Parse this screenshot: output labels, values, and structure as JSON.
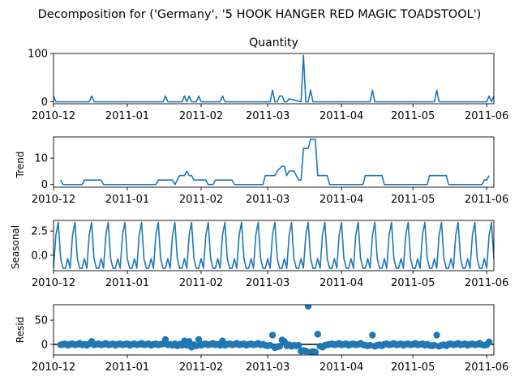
{
  "figure": {
    "title": "Decomposition for ('Germany', '5 HOOK HANGER RED MAGIC TOADSTOOL')"
  },
  "colors": {
    "line": "#1f77b4",
    "axis": "#000000"
  },
  "chart_data": [
    {
      "type": "line",
      "panel": "observed",
      "title": "Quantity",
      "ylabel": "",
      "ylim": [
        -4,
        100
      ],
      "yticks": [
        0,
        100
      ],
      "xlim": [
        "2010-12-01",
        "2011-06-04"
      ],
      "xticks": [
        "2010-12",
        "2011-01",
        "2011-02",
        "2011-03",
        "2011-04",
        "2011-05",
        "2011-06"
      ],
      "series": [
        {
          "x": [
            "2010-12-01",
            "2010-12-02",
            "2010-12-16",
            "2010-12-17",
            "2010-12-18",
            "2011-01-16",
            "2011-01-17",
            "2011-01-18",
            "2011-01-24",
            "2011-01-25",
            "2011-01-26",
            "2011-01-27",
            "2011-01-28",
            "2011-01-30",
            "2011-01-31",
            "2011-02-01",
            "2011-02-09",
            "2011-02-10",
            "2011-02-11",
            "2011-03-02",
            "2011-03-03",
            "2011-03-04",
            "2011-03-05",
            "2011-03-06",
            "2011-03-07",
            "2011-03-08",
            "2011-03-09",
            "2011-03-10",
            "2011-03-15",
            "2011-03-16",
            "2011-03-17",
            "2011-03-18",
            "2011-03-19",
            "2011-03-20",
            "2011-04-13",
            "2011-04-14",
            "2011-04-15",
            "2011-05-10",
            "2011-05-11",
            "2011-05-12",
            "2011-06-01",
            "2011-06-02",
            "2011-06-03",
            "2011-06-04"
          ],
          "y": [
            12,
            0,
            0,
            12,
            0,
            0,
            12,
            0,
            0,
            12,
            0,
            12,
            0,
            0,
            12,
            0,
            0,
            12,
            0,
            0,
            24,
            0,
            0,
            12,
            12,
            0,
            0,
            6,
            0,
            96,
            0,
            0,
            24,
            0,
            0,
            24,
            0,
            0,
            24,
            0,
            0,
            12,
            0,
            12
          ]
        }
      ]
    },
    {
      "type": "line",
      "panel": "trend",
      "title": "",
      "ylabel": "Trend",
      "ylim": [
        -1,
        18
      ],
      "yticks": [
        0,
        10
      ],
      "xlim": [
        "2010-12-01",
        "2011-06-04"
      ],
      "xticks": [
        "2010-12",
        "2011-01",
        "2011-02",
        "2011-03",
        "2011-04",
        "2011-05",
        "2011-06"
      ],
      "series": [
        {
          "x": [
            "2010-12-04",
            "2010-12-05",
            "2010-12-13",
            "2010-12-14",
            "2010-12-21",
            "2010-12-22",
            "2011-01-13",
            "2011-01-14",
            "2011-01-20",
            "2011-01-21",
            "2011-01-22",
            "2011-01-23",
            "2011-01-25",
            "2011-01-26",
            "2011-01-27",
            "2011-01-28",
            "2011-01-29",
            "2011-01-30",
            "2011-02-03",
            "2011-02-04",
            "2011-02-06",
            "2011-02-07",
            "2011-02-14",
            "2011-02-15",
            "2011-02-27",
            "2011-02-28",
            "2011-03-04",
            "2011-03-05",
            "2011-03-07",
            "2011-03-08",
            "2011-03-09",
            "2011-03-10",
            "2011-03-12",
            "2011-03-13",
            "2011-03-14",
            "2011-03-15",
            "2011-03-16",
            "2011-03-18",
            "2011-03-19",
            "2011-03-21",
            "2011-03-22",
            "2011-03-26",
            "2011-03-27",
            "2011-04-10",
            "2011-04-11",
            "2011-04-18",
            "2011-04-19",
            "2011-05-07",
            "2011-05-08",
            "2011-05-15",
            "2011-05-16",
            "2011-05-30",
            "2011-05-31",
            "2011-06-01",
            "2011-06-02"
          ],
          "y": [
            1.7,
            0,
            0,
            1.7,
            1.7,
            0,
            0,
            1.7,
            1.7,
            0,
            1.7,
            3.4,
            3.4,
            5,
            3.4,
            3.4,
            1.7,
            1.7,
            1.7,
            0,
            0,
            1.7,
            1.7,
            0,
            0,
            3.4,
            3.4,
            5.1,
            6.9,
            6.9,
            3.4,
            5.1,
            5.1,
            3.4,
            1.7,
            1.7,
            13.7,
            13.7,
            17.1,
            17.1,
            3.4,
            3.4,
            0,
            0,
            3.4,
            3.4,
            0,
            0,
            3.4,
            3.4,
            0,
            0,
            1.7,
            1.7,
            3.4
          ]
        }
      ]
    },
    {
      "type": "line",
      "panel": "seasonal",
      "title": "",
      "ylabel": "Seasonal",
      "ylim": [
        -1.6,
        3.6
      ],
      "yticks": [
        -0.0,
        2.5
      ],
      "ytick_labels": [
        "0.0",
        "2.5"
      ],
      "xlim": [
        "2010-12-01",
        "2011-06-04"
      ],
      "xticks": [
        "2010-12",
        "2011-01",
        "2011-02",
        "2011-03",
        "2011-04",
        "2011-05",
        "2011-06"
      ],
      "pattern_start": "2010-12-01",
      "period_pattern": [
        -1.35,
        2.1,
        3.4,
        -0.35,
        -1.35,
        -1.35,
        -0.35
      ],
      "series_name": ""
    },
    {
      "type": "scatter",
      "panel": "resid",
      "title": "",
      "ylabel": "Resid",
      "ylim": [
        -22,
        82
      ],
      "yticks": [
        0,
        50
      ],
      "xlim": [
        "2010-12-01",
        "2011-06-04"
      ],
      "xticks": [
        "2010-12",
        "2011-01",
        "2011-02",
        "2011-03",
        "2011-04",
        "2011-05",
        "2011-06"
      ],
      "zero_line": true,
      "points": [
        [
          "2010-12-04",
          -1
        ],
        [
          "2010-12-05",
          0
        ],
        [
          "2010-12-06",
          1
        ],
        [
          "2010-12-07",
          -2
        ],
        [
          "2010-12-08",
          0
        ],
        [
          "2010-12-09",
          1
        ],
        [
          "2010-12-10",
          -1
        ],
        [
          "2010-12-11",
          0
        ],
        [
          "2010-12-12",
          2
        ],
        [
          "2010-12-13",
          -1
        ],
        [
          "2010-12-14",
          0
        ],
        [
          "2010-12-15",
          -2
        ],
        [
          "2010-12-16",
          1
        ],
        [
          "2010-12-17",
          6
        ],
        [
          "2010-12-18",
          -1
        ],
        [
          "2010-12-19",
          0
        ],
        [
          "2010-12-20",
          1
        ],
        [
          "2010-12-21",
          -1
        ],
        [
          "2010-12-22",
          0
        ],
        [
          "2010-12-23",
          2
        ],
        [
          "2010-12-24",
          -1
        ],
        [
          "2010-12-25",
          0
        ],
        [
          "2010-12-26",
          1
        ],
        [
          "2010-12-27",
          -2
        ],
        [
          "2010-12-28",
          0
        ],
        [
          "2010-12-29",
          1
        ],
        [
          "2010-12-30",
          -1
        ],
        [
          "2010-12-31",
          0
        ],
        [
          "2011-01-01",
          1
        ],
        [
          "2011-01-02",
          -2
        ],
        [
          "2011-01-03",
          0
        ],
        [
          "2011-01-04",
          1
        ],
        [
          "2011-01-05",
          -1
        ],
        [
          "2011-01-06",
          0
        ],
        [
          "2011-01-07",
          2
        ],
        [
          "2011-01-08",
          -1
        ],
        [
          "2011-01-09",
          0
        ],
        [
          "2011-01-10",
          1
        ],
        [
          "2011-01-11",
          -2
        ],
        [
          "2011-01-12",
          0
        ],
        [
          "2011-01-13",
          1
        ],
        [
          "2011-01-14",
          -1
        ],
        [
          "2011-01-15",
          0
        ],
        [
          "2011-01-16",
          1
        ],
        [
          "2011-01-17",
          10
        ],
        [
          "2011-01-18",
          -1
        ],
        [
          "2011-01-19",
          0
        ],
        [
          "2011-01-20",
          -2
        ],
        [
          "2011-01-21",
          1
        ],
        [
          "2011-01-22",
          -3
        ],
        [
          "2011-01-23",
          0
        ],
        [
          "2011-01-24",
          -2
        ],
        [
          "2011-01-25",
          7
        ],
        [
          "2011-01-26",
          -2
        ],
        [
          "2011-01-27",
          6
        ],
        [
          "2011-01-28",
          -6
        ],
        [
          "2011-01-29",
          -1
        ],
        [
          "2011-01-30",
          -3
        ],
        [
          "2011-01-31",
          10
        ],
        [
          "2011-02-01",
          -2
        ],
        [
          "2011-02-02",
          0
        ],
        [
          "2011-02-03",
          1
        ],
        [
          "2011-02-04",
          -1
        ],
        [
          "2011-02-05",
          0
        ],
        [
          "2011-02-06",
          2
        ],
        [
          "2011-02-07",
          -1
        ],
        [
          "2011-02-08",
          0
        ],
        [
          "2011-02-09",
          -2
        ],
        [
          "2011-02-10",
          7
        ],
        [
          "2011-02-11",
          -2
        ],
        [
          "2011-02-12",
          0
        ],
        [
          "2011-02-13",
          1
        ],
        [
          "2011-02-14",
          -1
        ],
        [
          "2011-02-15",
          0
        ],
        [
          "2011-02-16",
          2
        ],
        [
          "2011-02-17",
          -1
        ],
        [
          "2011-02-18",
          0
        ],
        [
          "2011-02-19",
          1
        ],
        [
          "2011-02-20",
          -2
        ],
        [
          "2011-02-21",
          0
        ],
        [
          "2011-02-22",
          1
        ],
        [
          "2011-02-23",
          -1
        ],
        [
          "2011-02-24",
          0
        ],
        [
          "2011-02-25",
          2
        ],
        [
          "2011-02-26",
          -1
        ],
        [
          "2011-02-27",
          0
        ],
        [
          "2011-02-28",
          -2
        ],
        [
          "2011-03-01",
          -3
        ],
        [
          "2011-03-02",
          -2
        ],
        [
          "2011-03-03",
          19
        ],
        [
          "2011-03-04",
          -7
        ],
        [
          "2011-03-05",
          -5
        ],
        [
          "2011-03-06",
          -4
        ],
        [
          "2011-03-07",
          9
        ],
        [
          "2011-03-08",
          6
        ],
        [
          "2011-03-09",
          -3
        ],
        [
          "2011-03-10",
          -1
        ],
        [
          "2011-03-11",
          -4
        ],
        [
          "2011-03-12",
          -2
        ],
        [
          "2011-03-13",
          -3
        ],
        [
          "2011-03-14",
          -2
        ],
        [
          "2011-03-15",
          -14
        ],
        [
          "2011-03-16",
          -13
        ],
        [
          "2011-03-17",
          -14
        ],
        [
          "2011-03-18",
          79
        ],
        [
          "2011-03-19",
          -16
        ],
        [
          "2011-03-20",
          -15
        ],
        [
          "2011-03-21",
          -16
        ],
        [
          "2011-03-22",
          21
        ],
        [
          "2011-03-23",
          -4
        ],
        [
          "2011-03-24",
          -6
        ],
        [
          "2011-03-25",
          -2
        ],
        [
          "2011-03-26",
          -1
        ],
        [
          "2011-03-27",
          0
        ],
        [
          "2011-03-28",
          1
        ],
        [
          "2011-03-29",
          -1
        ],
        [
          "2011-03-30",
          0
        ],
        [
          "2011-03-31",
          2
        ],
        [
          "2011-04-01",
          -1
        ],
        [
          "2011-04-02",
          0
        ],
        [
          "2011-04-03",
          1
        ],
        [
          "2011-04-04",
          -2
        ],
        [
          "2011-04-05",
          0
        ],
        [
          "2011-04-06",
          1
        ],
        [
          "2011-04-07",
          -1
        ],
        [
          "2011-04-08",
          0
        ],
        [
          "2011-04-09",
          2
        ],
        [
          "2011-04-10",
          -1
        ],
        [
          "2011-04-11",
          -2
        ],
        [
          "2011-04-12",
          -3
        ],
        [
          "2011-04-13",
          -2
        ],
        [
          "2011-04-14",
          19
        ],
        [
          "2011-04-15",
          -4
        ],
        [
          "2011-04-16",
          -2
        ],
        [
          "2011-04-17",
          -1
        ],
        [
          "2011-04-18",
          -3
        ],
        [
          "2011-04-19",
          0
        ],
        [
          "2011-04-20",
          1
        ],
        [
          "2011-04-21",
          -1
        ],
        [
          "2011-04-22",
          0
        ],
        [
          "2011-04-23",
          2
        ],
        [
          "2011-04-24",
          -1
        ],
        [
          "2011-04-25",
          0
        ],
        [
          "2011-04-26",
          1
        ],
        [
          "2011-04-27",
          -2
        ],
        [
          "2011-04-28",
          0
        ],
        [
          "2011-04-29",
          1
        ],
        [
          "2011-04-30",
          -1
        ],
        [
          "2011-05-01",
          0
        ],
        [
          "2011-05-02",
          2
        ],
        [
          "2011-05-03",
          -1
        ],
        [
          "2011-05-04",
          0
        ],
        [
          "2011-05-05",
          1
        ],
        [
          "2011-05-06",
          -2
        ],
        [
          "2011-05-07",
          0
        ],
        [
          "2011-05-08",
          -2
        ],
        [
          "2011-05-09",
          -3
        ],
        [
          "2011-05-10",
          -2
        ],
        [
          "2011-05-11",
          19
        ],
        [
          "2011-05-12",
          -4
        ],
        [
          "2011-05-13",
          -2
        ],
        [
          "2011-05-14",
          -1
        ],
        [
          "2011-05-15",
          -3
        ],
        [
          "2011-05-16",
          0
        ],
        [
          "2011-05-17",
          1
        ],
        [
          "2011-05-18",
          -1
        ],
        [
          "2011-05-19",
          0
        ],
        [
          "2011-05-20",
          2
        ],
        [
          "2011-05-21",
          -1
        ],
        [
          "2011-05-22",
          0
        ],
        [
          "2011-05-23",
          1
        ],
        [
          "2011-05-24",
          -2
        ],
        [
          "2011-05-25",
          0
        ],
        [
          "2011-05-26",
          1
        ],
        [
          "2011-05-27",
          -1
        ],
        [
          "2011-05-28",
          0
        ],
        [
          "2011-05-29",
          2
        ],
        [
          "2011-05-30",
          -1
        ],
        [
          "2011-05-31",
          -2
        ],
        [
          "2011-06-01",
          -1
        ],
        [
          "2011-06-02",
          5
        ]
      ]
    }
  ]
}
